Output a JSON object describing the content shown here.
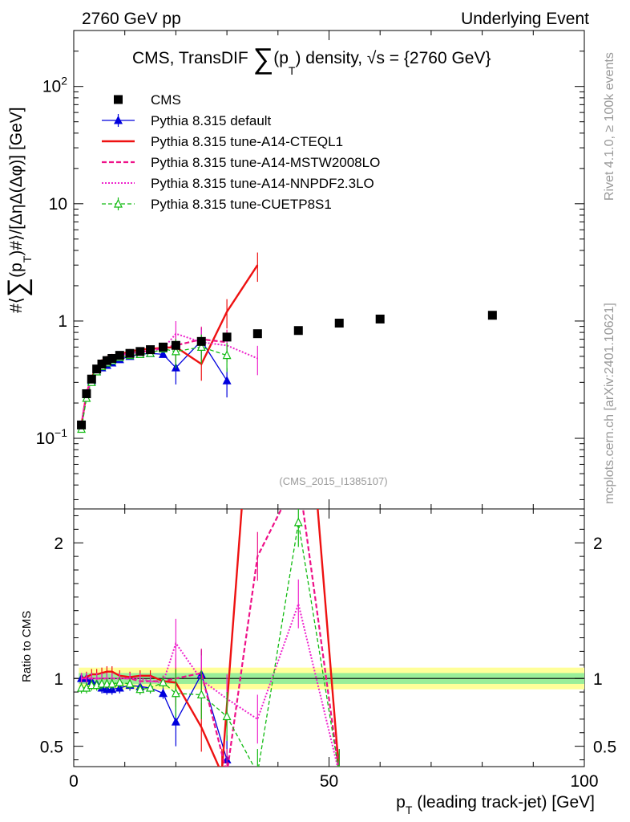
{
  "header": {
    "left": "2760 GeV pp",
    "right": "Underlying Event"
  },
  "title": {
    "prefix": "CMS, TransDIF ",
    "sum": "∑",
    "p": "(p",
    "sub": "T",
    "suffix": ") density, √s = {2760 GeV}"
  },
  "side": {
    "rivet": "Rivet 4.1.0, ≥ 100k events",
    "mcplots": "mcplots.cern.ch [arXiv:2401.10621]"
  },
  "analysis_id": "(CMS_2015_I1385107)",
  "colors": {
    "cms": "#000000",
    "default": "#0000dd",
    "cteql1": "#ee1111",
    "mstw": "#ee1188",
    "nnpdf": "#ee22cc",
    "cuetp8s1": "#11bb11",
    "band_outer": "#ffff99",
    "band_inner": "#99ee99"
  },
  "chart_data": [
    {
      "type": "line",
      "panel": "main",
      "ylabel": "#⟨∑(p_T)#⟩/[ΔηΔ(Δφ)] [GeV]",
      "ylabel_parts": {
        "a": "#⟨",
        "sum": "∑",
        "b": "(p",
        "sub": "T",
        "c": ")#⟩/[ΔηΔ(Δφ)] [GeV]"
      },
      "yscale": "log",
      "ylim": [
        0.025,
        300
      ],
      "xlim": [
        0,
        100
      ],
      "yticks": [
        {
          "v": 0.1,
          "base": "10",
          "exp": "−1"
        },
        {
          "v": 1,
          "base": "1",
          "exp": ""
        },
        {
          "v": 10,
          "base": "10",
          "exp": ""
        },
        {
          "v": 100,
          "base": "10",
          "exp": "2"
        }
      ],
      "legend_position": "top-left",
      "legend": [
        {
          "label": "CMS",
          "key": "cms"
        },
        {
          "label": "Pythia 8.315 default",
          "key": "default"
        },
        {
          "label": "Pythia 8.315 tune-A14-CTEQL1",
          "key": "cteql1"
        },
        {
          "label": "Pythia 8.315 tune-A14-MSTW2008LO",
          "key": "mstw"
        },
        {
          "label": "Pythia 8.315 tune-A14-NNPDF2.3LO",
          "key": "nnpdf"
        },
        {
          "label": "Pythia 8.315 tune-CUETP8S1",
          "key": "cuetp8s1"
        }
      ],
      "series": [
        {
          "name": "CMS",
          "key": "cms",
          "x": [
            1.5,
            2.5,
            3.5,
            4.5,
            5.5,
            6.5,
            7.5,
            9,
            11,
            13,
            15,
            17.5,
            20,
            25,
            30,
            36,
            44,
            52,
            60,
            82
          ],
          "y": [
            0.13,
            0.24,
            0.32,
            0.39,
            0.43,
            0.46,
            0.48,
            0.51,
            0.53,
            0.55,
            0.57,
            0.6,
            0.62,
            0.67,
            0.73,
            0.78,
            0.83,
            0.96,
            1.04,
            1.12
          ]
        },
        {
          "name": "Pythia 8.315 default",
          "key": "default",
          "x": [
            1.5,
            2.5,
            3.5,
            4.5,
            5.5,
            6.5,
            7.5,
            9,
            11,
            13,
            15,
            17.5,
            20,
            25,
            30
          ],
          "y": [
            0.13,
            0.24,
            0.31,
            0.37,
            0.4,
            0.42,
            0.44,
            0.47,
            0.5,
            0.52,
            0.53,
            0.52,
            0.4,
            0.68,
            0.31
          ]
        },
        {
          "name": "Pythia 8.315 tune-A14-CTEQL1",
          "key": "cteql1",
          "x": [
            1.5,
            2.5,
            3.5,
            4.5,
            5.5,
            6.5,
            7.5,
            9,
            11,
            13,
            15,
            17.5,
            20,
            25,
            30,
            36
          ],
          "y": [
            0.13,
            0.24,
            0.33,
            0.4,
            0.45,
            0.48,
            0.5,
            0.52,
            0.55,
            0.57,
            0.58,
            0.59,
            0.6,
            0.43,
            1.2,
            3.0
          ]
        },
        {
          "name": "Pythia 8.315 tune-A14-MSTW2008LO",
          "key": "mstw",
          "x": [
            1.5,
            2.5,
            3.5,
            4.5,
            5.5,
            6.5,
            7.5,
            9,
            11,
            13,
            15,
            17.5,
            20,
            25,
            30
          ],
          "y": [
            0.13,
            0.24,
            0.32,
            0.39,
            0.43,
            0.46,
            0.48,
            0.51,
            0.53,
            0.54,
            0.56,
            0.59,
            0.62,
            0.7,
            0.66
          ]
        },
        {
          "name": "Pythia 8.315 tune-A14-NNPDF2.3LO",
          "key": "nnpdf",
          "x": [
            1.5,
            2.5,
            3.5,
            4.5,
            5.5,
            6.5,
            7.5,
            9,
            11,
            13,
            15,
            17.5,
            20,
            25,
            30,
            36
          ],
          "y": [
            0.13,
            0.24,
            0.32,
            0.39,
            0.43,
            0.46,
            0.48,
            0.51,
            0.53,
            0.55,
            0.56,
            0.58,
            0.78,
            0.66,
            0.62,
            0.48
          ]
        },
        {
          "name": "Pythia 8.315 tune-CUETP8S1",
          "key": "cuetp8s1",
          "x": [
            1.5,
            2.5,
            3.5,
            4.5,
            5.5,
            6.5,
            7.5,
            9,
            11,
            13,
            15,
            17.5,
            20,
            25,
            30
          ],
          "y": [
            0.12,
            0.22,
            0.3,
            0.37,
            0.41,
            0.44,
            0.46,
            0.49,
            0.51,
            0.52,
            0.53,
            0.58,
            0.55,
            0.6,
            0.51
          ]
        }
      ]
    },
    {
      "type": "line",
      "panel": "ratio",
      "ylabel": "Ratio to CMS",
      "xlabel": "p_T (leading track-jet) [GeV]",
      "xlabel_parts": {
        "p": "p",
        "sub": "T",
        "rest": " (leading track-jet) [GeV]"
      },
      "xlim": [
        0,
        100
      ],
      "ylim": [
        0.35,
        2.25
      ],
      "xticks": [
        0,
        50,
        100
      ],
      "yticks": [
        0.5,
        1,
        2
      ],
      "band_outer": {
        "x": [
          1,
          100
        ],
        "lo": 0.92,
        "hi": 1.08
      },
      "band_inner": {
        "x": [
          1,
          100
        ],
        "lo": 0.96,
        "hi": 1.04
      },
      "series": [
        {
          "name": "Pythia 8.315 default",
          "key": "default",
          "x": [
            1.5,
            2.5,
            3.5,
            4.5,
            5.5,
            6.5,
            7.5,
            9,
            11,
            13,
            15,
            17.5,
            20,
            25,
            30
          ],
          "y": [
            1.0,
            1.0,
            0.98,
            0.96,
            0.93,
            0.92,
            0.92,
            0.93,
            0.95,
            0.94,
            0.93,
            0.89,
            0.68,
            1.03,
            0.4
          ]
        },
        {
          "name": "Pythia 8.315 tune-A14-CTEQL1",
          "key": "cteql1",
          "x": [
            1.5,
            2.5,
            3.5,
            4.5,
            5.5,
            6.5,
            7.5,
            9,
            11,
            13,
            15,
            17.5,
            20,
            25,
            29,
            36,
            44,
            52
          ],
          "y": [
            1.0,
            1.01,
            1.03,
            1.03,
            1.04,
            1.05,
            1.05,
            1.02,
            1.01,
            1.02,
            1.02,
            0.98,
            0.97,
            0.64,
            0.3,
            3.8,
            4.0,
            0.3
          ]
        },
        {
          "name": "Pythia 8.315 tune-A14-MSTW2008LO",
          "key": "mstw",
          "x": [
            1.5,
            2.5,
            3.5,
            4.5,
            5.5,
            6.5,
            7.5,
            9,
            11,
            13,
            15,
            17.5,
            20,
            25,
            30,
            36,
            44,
            52
          ],
          "y": [
            1.0,
            1.0,
            1.0,
            1.0,
            1.0,
            1.0,
            1.0,
            1.0,
            1.0,
            0.98,
            0.98,
            0.98,
            1.0,
            1.04,
            0.3,
            1.9,
            2.5,
            0.3
          ]
        },
        {
          "name": "Pythia 8.315 tune-A14-NNPDF2.3LO",
          "key": "nnpdf",
          "x": [
            1.5,
            2.5,
            3.5,
            4.5,
            5.5,
            6.5,
            7.5,
            9,
            11,
            13,
            15,
            17.5,
            20,
            25,
            30,
            36,
            44,
            52
          ],
          "y": [
            1.0,
            1.0,
            1.0,
            1.0,
            1.0,
            1.0,
            1.0,
            1.0,
            1.0,
            1.0,
            0.98,
            0.97,
            1.26,
            0.99,
            0.85,
            0.7,
            1.55,
            0.3
          ]
        },
        {
          "name": "Pythia 8.315 tune-CUETP8S1",
          "key": "cuetp8s1",
          "x": [
            1.5,
            2.5,
            3.5,
            4.5,
            5.5,
            6.5,
            7.5,
            9,
            11,
            13,
            15,
            17.5,
            20,
            25,
            30,
            36,
            44,
            52
          ],
          "y": [
            0.93,
            0.93,
            0.95,
            0.95,
            0.96,
            0.96,
            0.96,
            0.97,
            0.96,
            0.92,
            0.93,
            0.97,
            0.89,
            0.88,
            0.72,
            0.3,
            2.15,
            0.3
          ]
        }
      ]
    }
  ]
}
